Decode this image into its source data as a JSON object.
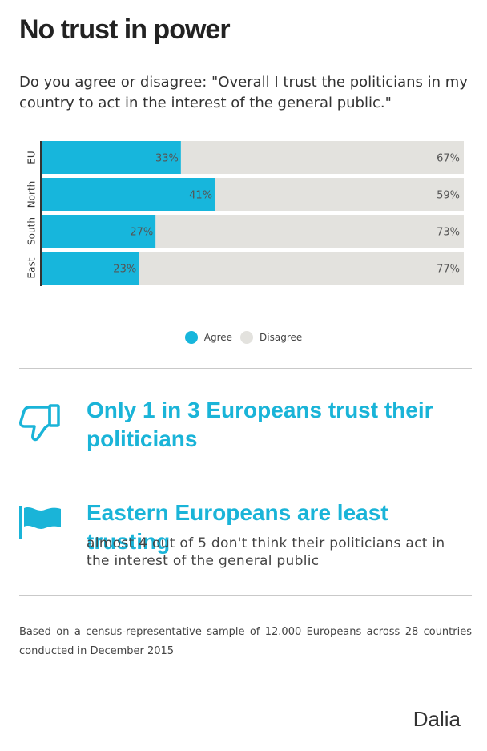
{
  "header": {
    "title": "No trust in power",
    "subtitle": "Do you agree or disagree: \"Overall I trust the politicians in my country to act in the interest of the general public.\""
  },
  "chart_data": {
    "type": "bar",
    "orientation": "horizontal",
    "stacked": true,
    "percent": true,
    "categories": [
      "EU",
      "North",
      "South",
      "East"
    ],
    "series": [
      {
        "name": "Agree",
        "values": [
          33,
          41,
          27,
          23
        ],
        "color": "#17b6dc"
      },
      {
        "name": "Disagree",
        "values": [
          67,
          59,
          73,
          77
        ],
        "color": "#e3e2de"
      }
    ],
    "xlim": [
      0,
      100
    ],
    "legend": "bottom-center",
    "grid": false
  },
  "findings": [
    {
      "icon": "thumbs-down-icon",
      "headline": "Only 1 in 3 Europeans trust their politicians"
    },
    {
      "icon": "flag-icon",
      "headline": "Eastern Europeans are least trusting",
      "detail": "almost 4 out of 5 don't think their politicians act in the interest of the general public"
    }
  ],
  "footer": {
    "source": "Based on a census-representative sample of 12.000 Europeans across 28 countries conducted in December 2015",
    "brand": "Dalia"
  },
  "colors": {
    "accent": "#1ab4d8",
    "agree": "#17b6dc",
    "disagree": "#e3e2de"
  }
}
